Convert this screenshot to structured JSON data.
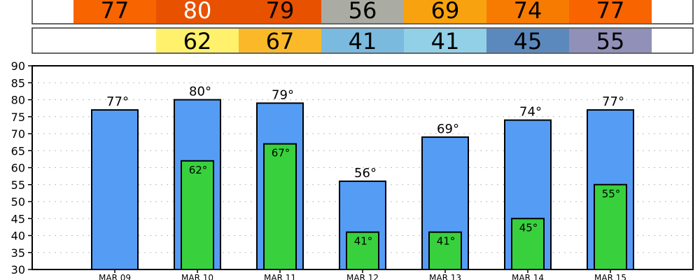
{
  "chart_data": {
    "type": "bar",
    "categories": [
      "MAR 09",
      "MAR 10",
      "MAR 11",
      "MAR 12",
      "MAR 13",
      "MAR 14",
      "MAR 15"
    ],
    "series": [
      {
        "key": "high",
        "values": [
          77,
          80,
          79,
          56,
          69,
          74,
          77
        ],
        "color": "#559cf5",
        "labels": [
          "77°",
          "80°",
          "79°",
          "56°",
          "69°",
          "74°",
          "77°"
        ]
      },
      {
        "key": "low",
        "values": [
          null,
          62,
          67,
          41,
          41,
          45,
          55
        ],
        "color": "#38d13d",
        "labels": [
          "",
          "62°",
          "67°",
          "41°",
          "41°",
          "45°",
          "55°"
        ]
      }
    ],
    "ylim": [
      30,
      90
    ],
    "yticks": [
      "30",
      "35",
      "40",
      "45",
      "50",
      "55",
      "60",
      "65",
      "70",
      "75",
      "80",
      "85",
      "90"
    ],
    "grid": true,
    "high_strip": {
      "values": [
        "77",
        "80",
        "79",
        "56",
        "69",
        "74",
        "77"
      ],
      "colors": [
        "#f76400",
        "#e85100",
        "#e85100",
        "#aaaba2",
        "#f9a20f",
        "#f77b00",
        "#f76400"
      ],
      "text_colors": [
        "#000",
        "#fff",
        "#000",
        "#000",
        "#000",
        "#000",
        "#000"
      ]
    },
    "low_strip": {
      "values": [
        "",
        "62",
        "67",
        "41",
        "41",
        "45",
        "55"
      ],
      "colors": [
        "#ffffff",
        "#fff16b",
        "#fbb92a",
        "#7bbadf",
        "#92d0e8",
        "#5b89bd",
        "#9090b8"
      ]
    }
  }
}
